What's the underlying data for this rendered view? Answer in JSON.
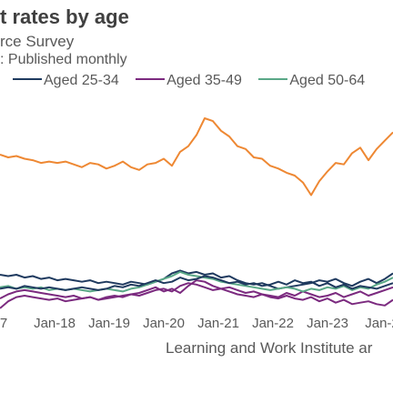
{
  "header": {
    "title": "t rates by age",
    "subtitle": "rce Survey",
    "note": ": Published monthly"
  },
  "source": "Learning and Work Institute ar",
  "colors": {
    "aged_25_34": "#1f3a5f",
    "aged_35_49": "#7b2a7f",
    "aged_50_64": "#5aa887",
    "orange": "#ee8833"
  },
  "chart_data": {
    "type": "line",
    "xlabel": "",
    "ylabel": "",
    "x_tick_labels": [
      "7",
      "Jan-18",
      "Jan-19",
      "Jan-20",
      "Jan-21",
      "Jan-22",
      "Jan-23",
      "Jan-2"
    ],
    "legend": {
      "position": "top",
      "entries": [
        "Aged 25-34",
        "Aged 35-49",
        "Aged 50-64"
      ]
    },
    "series": [
      {
        "color": "#ee8833",
        "values": [
          13.2,
          13.0,
          13.1,
          12.9,
          12.8,
          12.6,
          12.7,
          12.6,
          12.7,
          12.5,
          12.3,
          12.6,
          12.5,
          12.2,
          12.4,
          12.7,
          12.3,
          12.1,
          12.5,
          12.6,
          12.9,
          12.4,
          13.4,
          13.8,
          14.6,
          15.8,
          15.6,
          14.9,
          14.5,
          13.8,
          13.6,
          13.0,
          12.9,
          12.4,
          12.2,
          11.9,
          11.7,
          11.2,
          10.3,
          11.3,
          12.0,
          12.6,
          12.5,
          13.3,
          13.7,
          12.8,
          13.6,
          14.2,
          14.8
        ]
      },
      {
        "name": "Aged 25-34",
        "color": "#1f3a5f",
        "values": [
          4.6,
          4.5,
          4.6,
          4.4,
          4.5,
          4.3,
          4.4,
          4.2,
          4.3,
          4.2,
          4.1,
          4.2,
          4.0,
          4.1,
          4.0,
          3.9,
          4.1,
          4.0,
          3.9,
          4.1,
          4.3,
          4.7,
          4.9,
          4.7,
          4.8,
          4.6,
          4.7,
          4.4,
          4.5,
          4.2,
          4.0,
          3.9,
          4.0,
          3.8,
          3.6,
          3.7,
          3.8,
          3.9,
          4.0,
          4.2,
          4.1,
          4.3,
          4.0,
          3.8,
          4.1,
          4.3,
          4.0,
          4.3,
          4.7
        ]
      },
      {
        "name": "Aged 35-49",
        "color": "#7b2a7f",
        "values": [
          2.9,
          3.2,
          3.4,
          3.5,
          3.4,
          3.3,
          3.2,
          3.1,
          3.0,
          3.1,
          2.9,
          3.0,
          2.8,
          2.9,
          3.0,
          3.1,
          3.2,
          3.3,
          3.5,
          3.7,
          3.4,
          3.6,
          3.3,
          3.8,
          4.2,
          4.1,
          3.8,
          3.6,
          3.7,
          3.5,
          3.3,
          3.4,
          3.2,
          3.1,
          3.0,
          3.3,
          3.1,
          3.4,
          3.2,
          3.0,
          3.1,
          3.3,
          3.0,
          3.2,
          3.4,
          3.1,
          3.3,
          3.5,
          3.7
        ]
      },
      {
        "name": "Aged 50-64",
        "color": "#5aa887",
        "values": [
          3.7,
          3.8,
          3.6,
          3.7,
          3.6,
          3.7,
          3.5,
          3.6,
          3.5,
          3.6,
          3.5,
          3.4,
          3.5,
          3.6,
          3.5,
          3.4,
          3.6,
          3.7,
          3.9,
          4.1,
          4.3,
          4.5,
          4.8,
          4.6,
          4.5,
          4.4,
          4.3,
          4.1,
          4.0,
          3.9,
          3.8,
          3.7,
          3.6,
          3.5,
          3.6,
          3.7,
          3.6,
          3.4,
          3.6,
          3.5,
          3.7,
          3.6,
          3.8,
          3.5,
          3.7,
          3.6,
          3.9,
          4.1,
          4.4
        ]
      },
      {
        "color": "#1f3a5f",
        "values": [
          3.6,
          3.7,
          3.6,
          3.8,
          3.7,
          3.6,
          3.7,
          3.6,
          3.5,
          3.6,
          3.7,
          3.6,
          3.5,
          3.6,
          3.8,
          3.7,
          3.9,
          3.8,
          4.0,
          4.2,
          4.0,
          4.1,
          4.4,
          4.2,
          4.3,
          4.5,
          4.4,
          4.2,
          4.0,
          4.1,
          3.9,
          4.0,
          3.8,
          3.9,
          4.1,
          3.9,
          4.2,
          4.0,
          4.1,
          3.8,
          4.0,
          3.7,
          3.9,
          3.6,
          3.8,
          3.7,
          3.6,
          3.8,
          4.0
        ]
      },
      {
        "color": "#7b2a7f",
        "values": [
          2.2,
          2.7,
          3.0,
          3.1,
          3.0,
          2.9,
          2.8,
          2.9,
          2.7,
          2.8,
          2.9,
          3.0,
          2.8,
          3.0,
          3.1,
          3.0,
          3.2,
          3.1,
          3.3,
          3.5,
          3.6,
          3.4,
          3.8,
          4.0,
          3.9,
          3.7,
          3.5,
          3.6,
          3.4,
          3.2,
          3.1,
          3.0,
          3.2,
          3.0,
          2.9,
          3.1,
          2.9,
          2.8,
          3.0,
          2.7,
          2.9,
          2.6,
          2.8,
          2.5,
          2.6,
          2.7,
          2.5,
          2.4,
          2.8
        ]
      }
    ]
  }
}
